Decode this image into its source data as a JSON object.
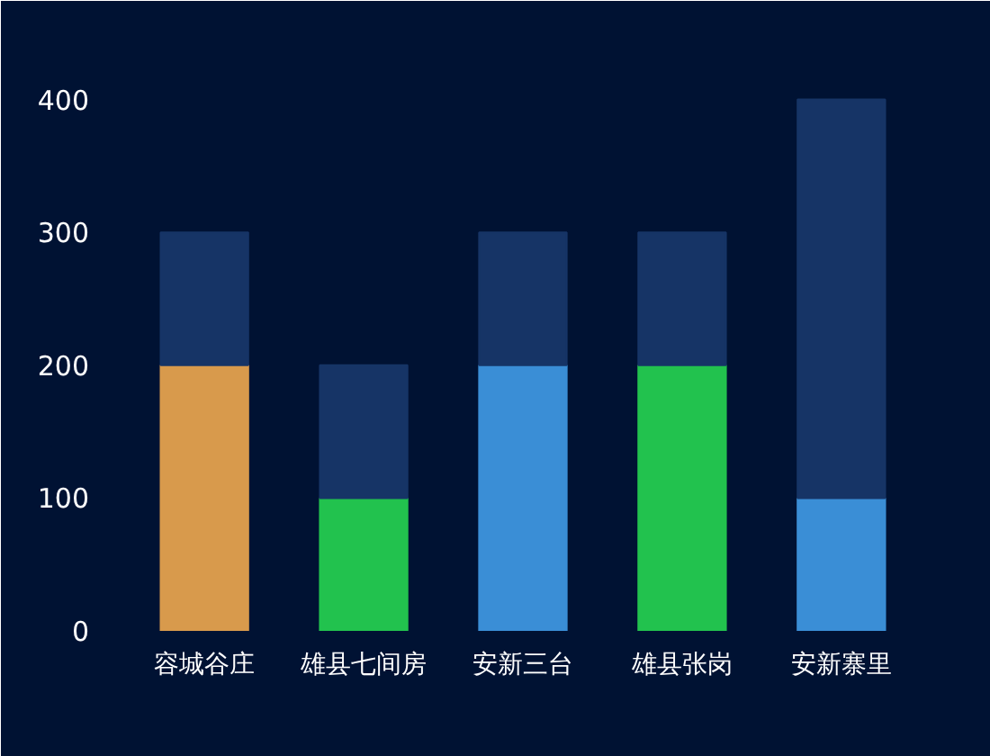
{
  "chart_data": {
    "type": "bar",
    "stacked": true,
    "categories": [
      "容城谷庄",
      "雄县七间房",
      "安新三台",
      "雄县张岗",
      "安新寨里"
    ],
    "series": [
      {
        "colors": [
          "#d89a4c",
          "#22c24e",
          "#3a8ed6",
          "#22c24e",
          "#3a8ed6"
        ],
        "values": [
          200,
          100,
          200,
          200,
          100
        ]
      },
      {
        "color": "#163466",
        "values": [
          100,
          100,
          100,
          100,
          300
        ]
      }
    ],
    "ylim": [
      0,
      420
    ],
    "yticks": [
      0,
      100,
      200,
      300,
      400
    ],
    "grid": false
  }
}
